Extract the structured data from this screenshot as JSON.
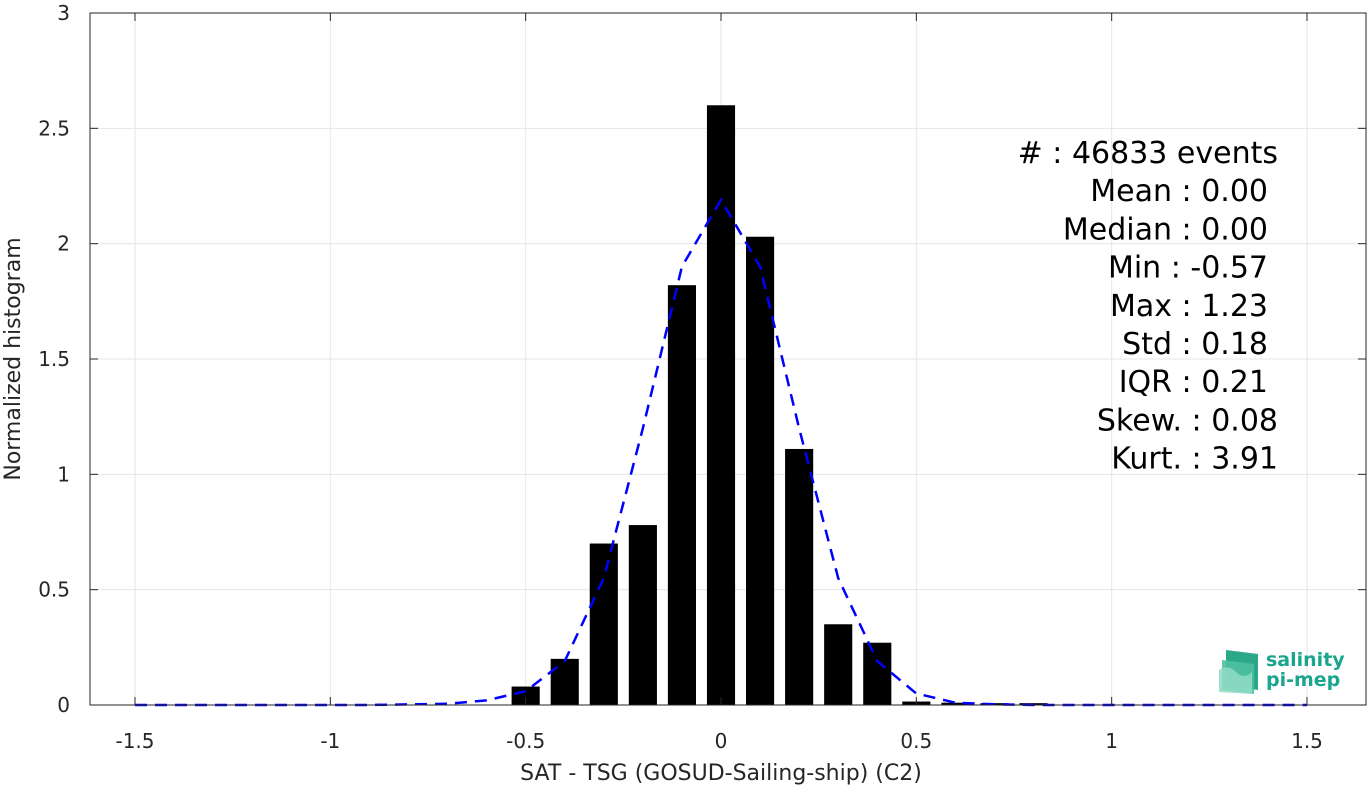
{
  "chart_data": {
    "type": "bar",
    "xlabel": "SAT - TSG (GOSUD-Sailing-ship) (C2)",
    "ylabel": "Normalized histogram",
    "xlim": [
      -1.5,
      1.5
    ],
    "ylim": [
      0,
      3
    ],
    "xticks": [
      "-1.5",
      "-1",
      "-0.5",
      "0",
      "0.5",
      "1",
      "1.5"
    ],
    "yticks": [
      "0",
      "0.5",
      "1",
      "1.5",
      "2",
      "2.5",
      "3"
    ],
    "grid": true,
    "bin_width": 0.1,
    "histogram": {
      "centers": [
        -0.5,
        -0.4,
        -0.3,
        -0.2,
        -0.1,
        0.0,
        0.1,
        0.2,
        0.3,
        0.4,
        0.5,
        0.6,
        0.7,
        0.8
      ],
      "values": [
        0.08,
        0.2,
        0.7,
        0.78,
        1.82,
        2.6,
        2.03,
        1.11,
        0.35,
        0.27,
        0.015,
        0.01,
        0.008,
        0.008
      ],
      "color": "#000000"
    },
    "fit_curve": {
      "style": "dashed",
      "color": "#0000ff",
      "x": [
        -1.5,
        -1.2,
        -0.9,
        -0.7,
        -0.6,
        -0.5,
        -0.4,
        -0.3,
        -0.2,
        -0.1,
        0.0,
        0.1,
        0.2,
        0.3,
        0.4,
        0.5,
        0.6,
        0.7,
        0.8,
        1.0,
        1.2,
        1.5
      ],
      "y": [
        0.0,
        0.0,
        0.0,
        0.005,
        0.02,
        0.06,
        0.19,
        0.55,
        1.2,
        1.9,
        2.19,
        1.9,
        1.2,
        0.55,
        0.19,
        0.05,
        0.01,
        0.003,
        0.0,
        0.0,
        0.0,
        0.0
      ]
    },
    "stats": [
      "#  : 46833 events",
      "Mean : 0.00",
      "Median : 0.00",
      "Min : -0.57",
      "Max : 1.23",
      "Std : 0.18",
      "IQR : 0.21",
      "Skew. : 0.08",
      "Kurt. : 3.91"
    ]
  },
  "logo": {
    "line1": "salinity",
    "line2": "pi-mep",
    "color": "#1aa58f"
  }
}
